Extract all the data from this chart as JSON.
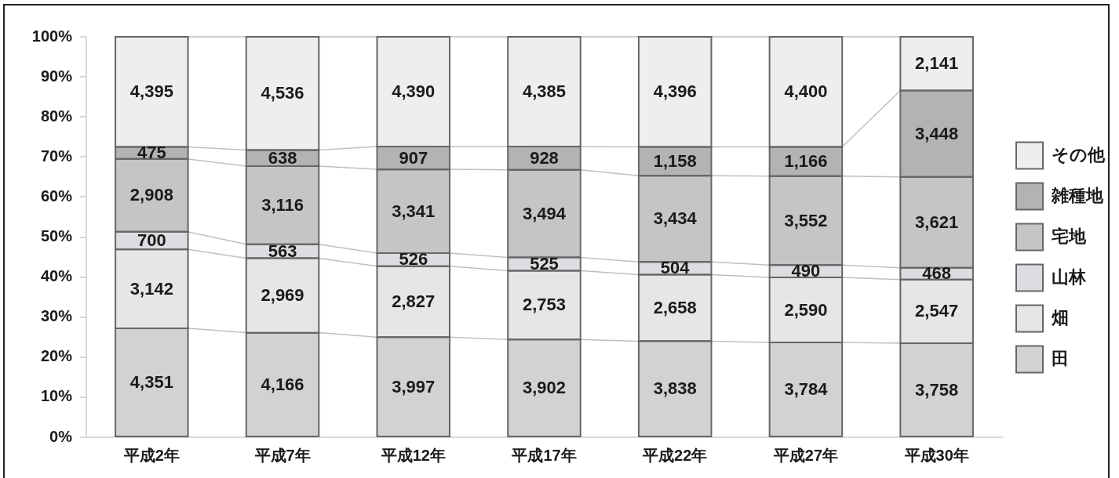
{
  "chart_data": {
    "type": "bar",
    "stacked": true,
    "categories": [
      "平成2年",
      "平成7年",
      "平成12年",
      "平成17年",
      "平成22年",
      "平成27年",
      "平成30年"
    ],
    "series": [
      {
        "name": "田",
        "color": "#d2d2d2",
        "values": [
          27.2,
          26.1,
          25.0,
          24.4,
          24.0,
          23.7,
          23.5
        ]
      },
      {
        "name": "畑",
        "color": "#e6e6e6",
        "values": [
          19.7,
          18.6,
          17.7,
          17.2,
          16.6,
          16.2,
          15.9
        ]
      },
      {
        "name": "山林",
        "color": "#dcdde0",
        "values": [
          4.4,
          3.5,
          3.3,
          3.3,
          3.2,
          3.1,
          2.9
        ]
      },
      {
        "name": "宅地",
        "color": "#c5c5c5",
        "values": [
          18.2,
          19.5,
          20.9,
          21.9,
          21.5,
          22.2,
          22.7
        ]
      },
      {
        "name": "雑種地",
        "color": "#b2b3b5",
        "values": [
          3.0,
          4.0,
          5.7,
          5.8,
          7.2,
          7.3,
          21.6
        ]
      },
      {
        "name": "その他",
        "color": "#eeeeee",
        "values": [
          27.5,
          28.3,
          27.4,
          27.4,
          27.5,
          27.5,
          13.4
        ]
      }
    ],
    "annotations": [
      "4,351",
      "3,142",
      "700",
      "2,908",
      "475",
      "4,395",
      "4,166",
      "2,969",
      "563",
      "3,116",
      "638",
      "4,536",
      "3,997",
      "2,827",
      "526",
      "3,341",
      "907",
      "4,390",
      "3,902",
      "2,753",
      "525",
      "3,494",
      "928",
      "4,385",
      "3,838",
      "2,658",
      "504",
      "3,434",
      "1,158",
      "4,396",
      "3,784",
      "2,590",
      "490",
      "3,552",
      "1,166",
      "4,400",
      "3,758",
      "2,547",
      "468",
      "3,621",
      "3,448",
      "2,141"
    ],
    "ylim": [
      0,
      100
    ],
    "yticks": [
      {
        "value": 0,
        "label": "0%"
      },
      {
        "value": 10,
        "label": "10%"
      },
      {
        "value": 20,
        "label": "20%"
      },
      {
        "value": 30,
        "label": "30%"
      },
      {
        "value": 40,
        "label": "40%"
      },
      {
        "value": 50,
        "label": "50%"
      },
      {
        "value": 60,
        "label": "60%"
      },
      {
        "value": 70,
        "label": "70%"
      },
      {
        "value": 80,
        "label": "80%"
      },
      {
        "value": 90,
        "label": "90%"
      },
      {
        "value": 100,
        "label": "100%"
      }
    ],
    "grid": false,
    "legend": "right"
  }
}
